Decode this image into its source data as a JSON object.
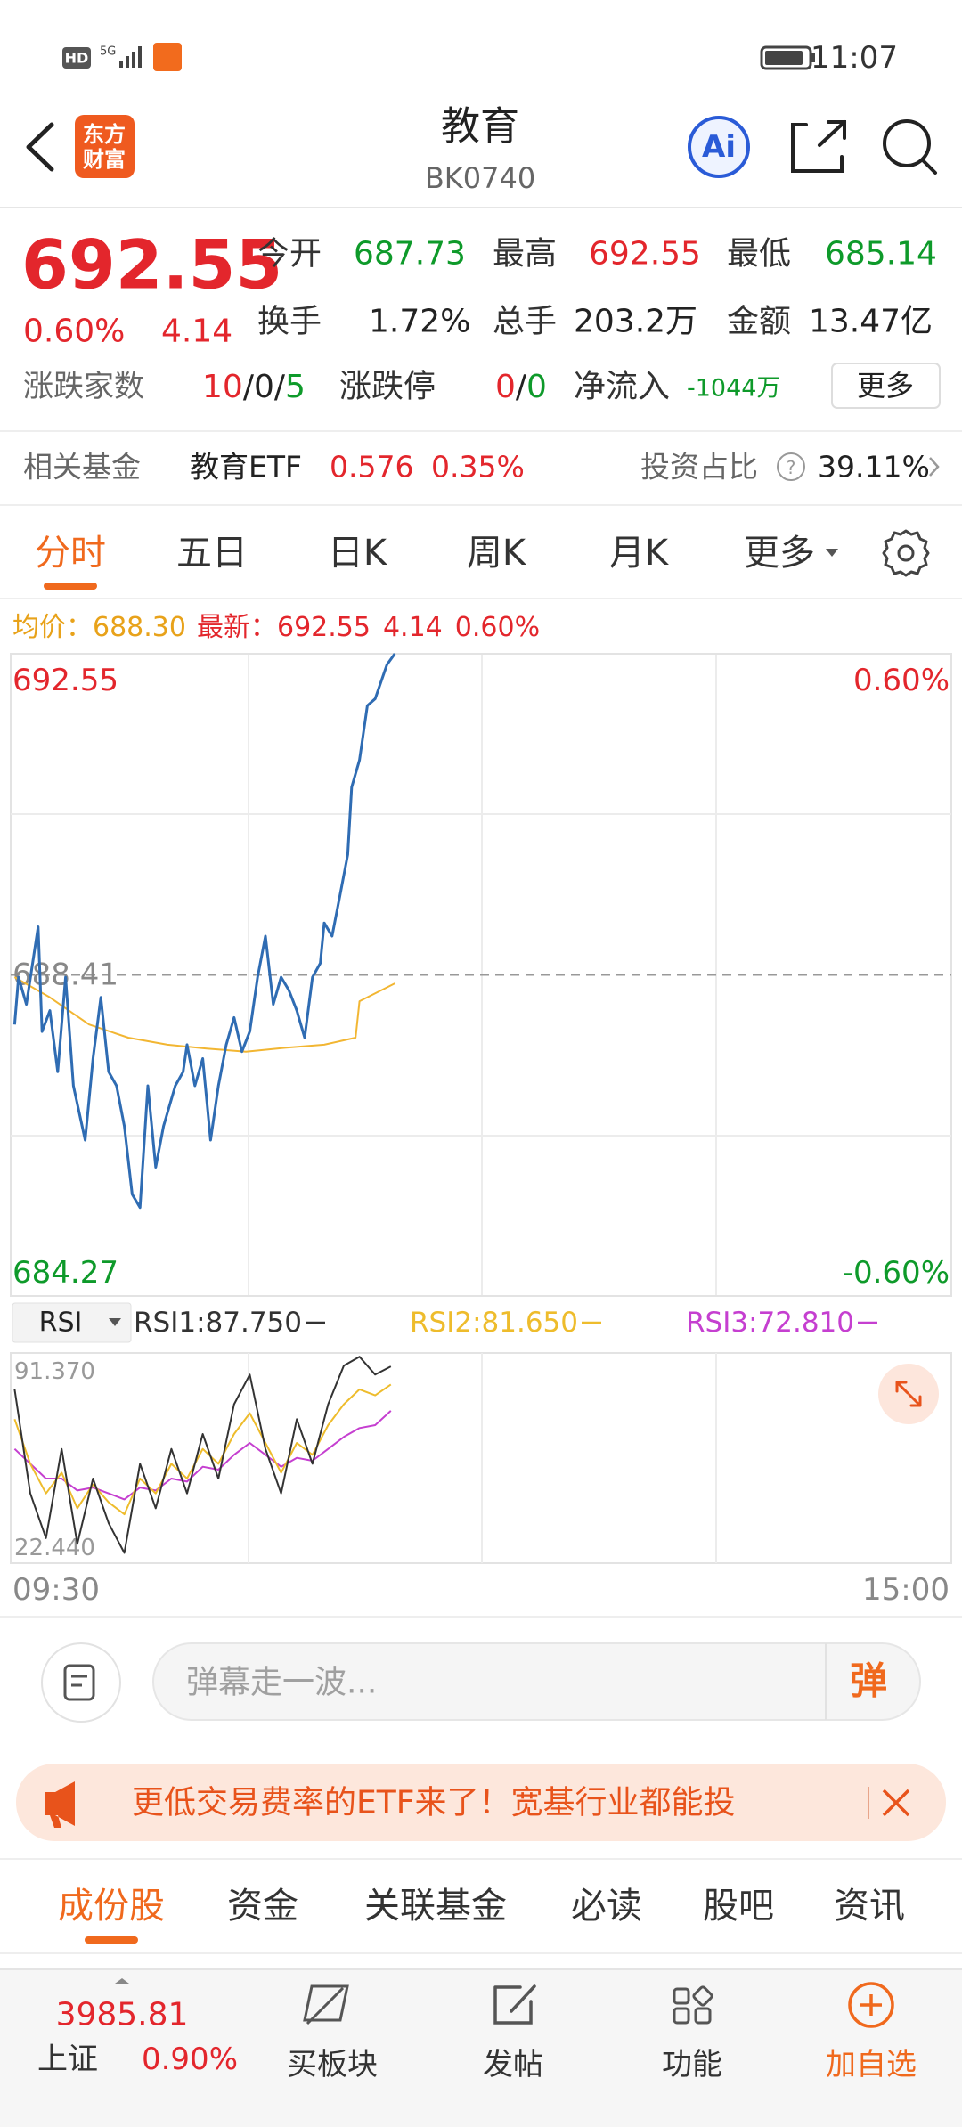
{
  "status_bar": {
    "hd": "HD",
    "net": "5G",
    "time": "11:07"
  },
  "header": {
    "logo": [
      "东方",
      "财富"
    ],
    "title": "教育",
    "code": "BK0740",
    "ai": "Ai"
  },
  "quote": {
    "price": "692.55",
    "change_pct": "0.60%",
    "change": "4.14",
    "stats": [
      {
        "label": "今开",
        "value": "687.73"
      },
      {
        "label": "最高",
        "value": "692.55"
      },
      {
        "label": "最低",
        "value": "685.14"
      },
      {
        "label": "换手",
        "value": "1.72%"
      },
      {
        "label": "总手",
        "value": "203.2万"
      },
      {
        "label": "金额",
        "value": "13.47亿"
      }
    ],
    "breadth": {
      "label": "涨跌家数",
      "parts": [
        "10",
        "/",
        "0",
        "/",
        "5"
      ]
    },
    "limit": {
      "label": "涨跌停",
      "parts": [
        "0",
        "/",
        "0"
      ]
    },
    "inflow": {
      "label": "净流入",
      "value": "-1044万"
    },
    "more": "更多"
  },
  "fund": {
    "label": "相关基金",
    "name": "教育ETF",
    "price": "0.576",
    "pct": "0.35%",
    "ratio_label": "投资占比",
    "help": "?",
    "ratio": "39.11%"
  },
  "tabs": {
    "items": [
      "分时",
      "五日",
      "日K",
      "周K",
      "月K",
      "更多"
    ],
    "active": 0
  },
  "info_line": {
    "avg_label": "均价：",
    "avg": "688.30",
    "last_label": "最新：",
    "last": "692.55",
    "change": "4.14",
    "pct": "0.60%"
  },
  "chart_data": [
    {
      "type": "line",
      "xlim": [
        0,
        240
      ],
      "ylim": [
        684.27,
        692.55
      ],
      "yticks": [
        684.27,
        688.41,
        692.55
      ],
      "y2lim": [
        -0.6,
        0.6
      ],
      "y2ticks": [
        {
          "value": 0.6,
          "label": "0.60%"
        },
        {
          "value": -0.6,
          "label": "-0.60%"
        }
      ],
      "series": [
        {
          "color": "#2f6cb3",
          "x": [
            1,
            2,
            4,
            7,
            8,
            10,
            12,
            14,
            16,
            19,
            21,
            23,
            25,
            27,
            29,
            31,
            33,
            35,
            37,
            39,
            42,
            44,
            45,
            47,
            49,
            51,
            53,
            55,
            57,
            59,
            61,
            63,
            65,
            67,
            69,
            71,
            73,
            75,
            77,
            79,
            80,
            82,
            84,
            86,
            87,
            89,
            91,
            93,
            96,
            98
          ],
          "values": [
            687.77,
            688.38,
            688.03,
            689.03,
            687.68,
            687.95,
            687.16,
            688.38,
            686.98,
            686.28,
            687.33,
            688.12,
            687.16,
            686.98,
            686.46,
            685.58,
            685.41,
            686.98,
            685.93,
            686.46,
            686.98,
            687.16,
            687.51,
            686.98,
            687.33,
            686.28,
            686.98,
            687.51,
            687.86,
            687.42,
            687.68,
            688.38,
            688.91,
            688.03,
            688.38,
            688.21,
            687.95,
            687.6,
            688.38,
            688.56,
            689.08,
            688.91,
            689.43,
            689.96,
            690.83,
            691.18,
            691.88,
            691.97,
            692.41,
            692.55
          ]
        },
        {
          "color": "#f2b632",
          "x": [
            1,
            10,
            20,
            30,
            40,
            50,
            60,
            70,
            80,
            88,
            89,
            98
          ],
          "values": [
            688.38,
            688.12,
            687.77,
            687.6,
            687.51,
            687.46,
            687.42,
            687.47,
            687.51,
            687.6,
            688.07,
            688.3
          ]
        }
      ]
    },
    {
      "type": "line",
      "indicator": "RSI",
      "xlim": [
        0,
        240
      ],
      "xticks": [
        {
          "value": 0,
          "label": "09:30"
        },
        {
          "value": 240,
          "label": "15:00"
        }
      ],
      "ylim": [
        22.44,
        91.37
      ],
      "yticks": [
        {
          "value": 91.37,
          "label": "91.370"
        },
        {
          "value": 22.44,
          "label": "22.440"
        }
      ],
      "x": [
        1,
        5,
        9,
        13,
        17,
        21,
        25,
        29,
        33,
        37,
        41,
        45,
        49,
        53,
        57,
        61,
        65,
        69,
        73,
        77,
        81,
        85,
        89,
        93,
        97
      ],
      "series": [
        {
          "name": "RSI1:87.750",
          "color": "#333333",
          "values": [
            80,
            45,
            30,
            60,
            28,
            50,
            35,
            25,
            55,
            40,
            60,
            45,
            65,
            50,
            75,
            85,
            60,
            45,
            70,
            55,
            75,
            88,
            91,
            85,
            87.75
          ]
        },
        {
          "name": "RSI2:81.650",
          "color": "#eebc2c",
          "values": [
            70,
            55,
            45,
            52,
            40,
            48,
            42,
            38,
            50,
            45,
            55,
            50,
            60,
            55,
            65,
            72,
            62,
            52,
            62,
            58,
            68,
            75,
            80,
            78,
            81.65
          ]
        },
        {
          "name": "RSI3:72.810",
          "color": "#c53fd0",
          "values": [
            60,
            55,
            50,
            50,
            46,
            47,
            45,
            43,
            47,
            46,
            50,
            49,
            54,
            53,
            58,
            62,
            58,
            54,
            57,
            56,
            60,
            64,
            67,
            68,
            72.81
          ]
        }
      ]
    }
  ],
  "comment": {
    "placeholder": "弹幕走一波...",
    "button": "弹"
  },
  "banner": {
    "text": "更低交易费率的ETF来了！宽基行业都能投"
  },
  "section_tabs": {
    "items": [
      "成份股",
      "资金",
      "关联基金",
      "必读",
      "股吧",
      "资讯"
    ],
    "active": 0
  },
  "bottom_nav": {
    "index": {
      "value": "3985.81",
      "name": "上证",
      "pct": "0.90%"
    },
    "items": [
      "买板块",
      "发帖",
      "功能",
      "加自选"
    ]
  }
}
